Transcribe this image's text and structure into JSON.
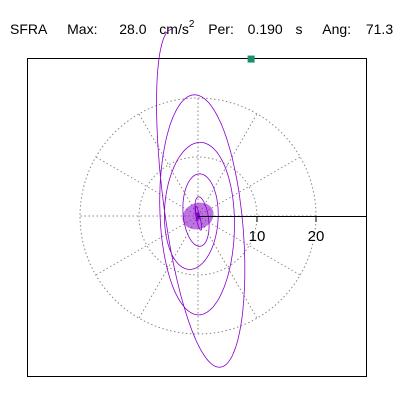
{
  "header": {
    "station": "SFRA",
    "max_label": "Max:",
    "max_value": "28.0",
    "max_unit": "cm/s",
    "max_unit_exp": "2",
    "per_label": "Per:",
    "per_value": "0.190",
    "per_unit": "s",
    "ang_label": "Ang:",
    "ang_value": "71.3"
  },
  "chart_data": {
    "type": "line",
    "title": "",
    "xlabel": "",
    "ylabel": "",
    "polar_grid": {
      "rings": [
        10,
        20
      ],
      "ring_labels": [
        "10",
        "20"
      ],
      "spokes_deg": [
        0,
        30,
        60,
        90,
        120,
        150,
        180,
        210,
        240,
        270,
        300,
        330
      ],
      "grid_style": "dotted",
      "units": "cm/s2"
    },
    "range": [
      -30,
      30
    ],
    "orbit": {
      "color": "#8800cc",
      "peak_amplitude": 28.0,
      "peak_angle_deg": 71.3,
      "marker": {
        "x": 9.0,
        "y": 26.6,
        "color": "#1a8f6f"
      }
    }
  }
}
